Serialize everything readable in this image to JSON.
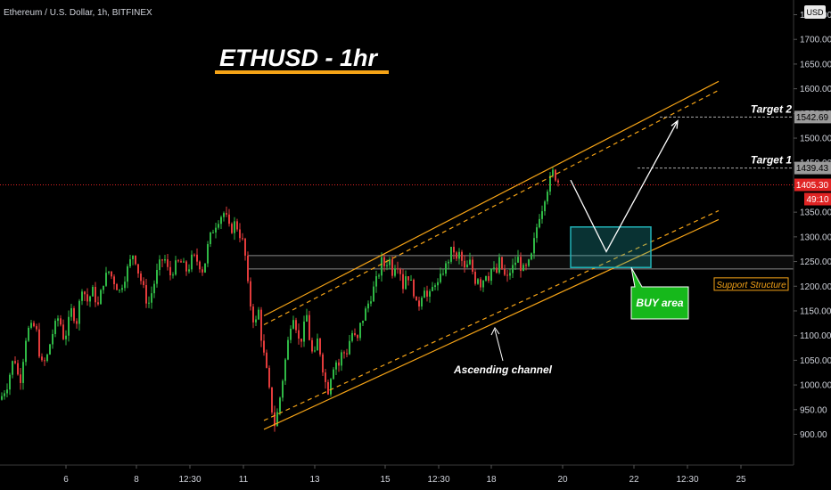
{
  "header": {
    "symbol": "Ethereum / U.S. Dollar, 1h, BITFINEX",
    "currency_button": "USD"
  },
  "title": "ETHUSD - 1hr",
  "colors": {
    "background": "#000000",
    "bull": "#2fb845",
    "bear": "#e23b3b",
    "channel": "#f5a316",
    "title_underline": "#f5a316",
    "buy_box": "#22b3b8",
    "buy_label": "#16b81b",
    "current_price": "#e02424",
    "target_label": "#9a9a9a",
    "arrow": "#ffffff"
  },
  "chart_data": {
    "type": "candlestick",
    "title": "ETHUSD - 1hr",
    "ylim": [
      870,
      1770
    ],
    "x_ticks": [
      "6",
      "8",
      "12:30",
      "11",
      "13",
      "15",
      "12:30",
      "18",
      "20",
      "22",
      "12:30",
      "25"
    ],
    "y_ticks": [
      900,
      950,
      1000,
      1050,
      1100,
      1150,
      1200,
      1250,
      1300,
      1350,
      1400,
      1450,
      1500,
      1550,
      1600,
      1650,
      1700,
      1750
    ],
    "y_tick_labels": [
      "900.00",
      "950.00",
      "1000.00",
      "1050.00",
      "1100.00",
      "1150.00",
      "1200.00",
      "1250.00",
      "1300.00",
      "1350.00",
      "1400.00",
      "1450.00",
      "1500.00",
      "1550.00",
      "1600.00",
      "1650.00",
      "1700.00",
      "1750.00"
    ],
    "price_path": [
      [
        0,
        970
      ],
      [
        8,
        1000
      ],
      [
        16,
        1060
      ],
      [
        22,
        1000
      ],
      [
        30,
        1110
      ],
      [
        40,
        1120
      ],
      [
        46,
        1040
      ],
      [
        52,
        1050
      ],
      [
        58,
        1100
      ],
      [
        66,
        1140
      ],
      [
        72,
        1090
      ],
      [
        80,
        1150
      ],
      [
        86,
        1130
      ],
      [
        92,
        1200
      ],
      [
        98,
        1170
      ],
      [
        104,
        1190
      ],
      [
        110,
        1160
      ],
      [
        116,
        1210
      ],
      [
        122,
        1230
      ],
      [
        128,
        1210
      ],
      [
        134,
        1190
      ],
      [
        140,
        1220
      ],
      [
        146,
        1250
      ],
      [
        150,
        1270
      ],
      [
        155,
        1230
      ],
      [
        160,
        1200
      ],
      [
        166,
        1160
      ],
      [
        172,
        1200
      ],
      [
        178,
        1240
      ],
      [
        184,
        1260
      ],
      [
        190,
        1220
      ],
      [
        196,
        1240
      ],
      [
        202,
        1250
      ],
      [
        210,
        1230
      ],
      [
        216,
        1260
      ],
      [
        222,
        1250
      ],
      [
        228,
        1230
      ],
      [
        234,
        1290
      ],
      [
        240,
        1320
      ],
      [
        246,
        1340
      ],
      [
        252,
        1350
      ],
      [
        258,
        1310
      ],
      [
        264,
        1330
      ],
      [
        270,
        1300
      ],
      [
        274,
        1280
      ],
      [
        278,
        1200
      ],
      [
        282,
        1150
      ],
      [
        286,
        1120
      ],
      [
        290,
        1150
      ],
      [
        294,
        1080
      ],
      [
        298,
        1040
      ],
      [
        304,
        960
      ],
      [
        308,
        920
      ],
      [
        312,
        950
      ],
      [
        316,
        1000
      ],
      [
        320,
        1050
      ],
      [
        324,
        1100
      ],
      [
        328,
        1150
      ],
      [
        332,
        1120
      ],
      [
        336,
        1080
      ],
      [
        340,
        1110
      ],
      [
        344,
        1140
      ],
      [
        348,
        1080
      ],
      [
        352,
        1050
      ],
      [
        356,
        1090
      ],
      [
        360,
        1060
      ],
      [
        364,
        1010
      ],
      [
        368,
        990
      ],
      [
        372,
        1030
      ],
      [
        376,
        1050
      ],
      [
        380,
        1040
      ],
      [
        384,
        1070
      ],
      [
        388,
        1060
      ],
      [
        392,
        1090
      ],
      [
        396,
        1110
      ],
      [
        400,
        1080
      ],
      [
        404,
        1120
      ],
      [
        408,
        1140
      ],
      [
        412,
        1160
      ],
      [
        416,
        1180
      ],
      [
        420,
        1200
      ],
      [
        424,
        1220
      ],
      [
        428,
        1250
      ],
      [
        432,
        1240
      ],
      [
        436,
        1260
      ],
      [
        440,
        1230
      ],
      [
        444,
        1250
      ],
      [
        448,
        1240
      ],
      [
        452,
        1200
      ],
      [
        456,
        1230
      ],
      [
        460,
        1210
      ],
      [
        464,
        1190
      ],
      [
        468,
        1150
      ],
      [
        472,
        1180
      ],
      [
        476,
        1200
      ],
      [
        480,
        1170
      ],
      [
        484,
        1190
      ],
      [
        488,
        1210
      ],
      [
        492,
        1200
      ],
      [
        496,
        1230
      ],
      [
        500,
        1240
      ],
      [
        504,
        1260
      ],
      [
        508,
        1280
      ],
      [
        512,
        1250
      ],
      [
        516,
        1270
      ],
      [
        520,
        1230
      ],
      [
        524,
        1240
      ],
      [
        528,
        1250
      ],
      [
        532,
        1210
      ],
      [
        536,
        1220
      ],
      [
        540,
        1200
      ],
      [
        544,
        1230
      ],
      [
        548,
        1220
      ],
      [
        552,
        1240
      ],
      [
        556,
        1220
      ],
      [
        560,
        1250
      ],
      [
        564,
        1230
      ],
      [
        568,
        1210
      ],
      [
        572,
        1230
      ],
      [
        576,
        1240
      ],
      [
        580,
        1260
      ],
      [
        584,
        1240
      ],
      [
        588,
        1230
      ],
      [
        592,
        1240
      ],
      [
        596,
        1260
      ],
      [
        600,
        1300
      ],
      [
        604,
        1340
      ],
      [
        608,
        1360
      ],
      [
        612,
        1390
      ],
      [
        616,
        1410
      ],
      [
        620,
        1430
      ],
      [
        624,
        1420
      ],
      [
        628,
        1405
      ]
    ],
    "channel": {
      "upper_start": [
        296,
        1140
      ],
      "upper_end": [
        806,
        1615
      ],
      "lower_start": [
        296,
        910
      ],
      "lower_end": [
        806,
        1335
      ]
    },
    "support_zone": [
      1235,
      1262
    ],
    "current_price": 1405.3,
    "current_price_label": "1405.30",
    "countdown_label": "49:10",
    "targets": [
      {
        "label": "Target 1",
        "price": 1439.43,
        "price_label": "1439.43"
      },
      {
        "label": "Target 2",
        "price": 1542.69,
        "price_label": "1542.69"
      }
    ],
    "annotations": {
      "support_structure": "Support Structure",
      "ascending_channel": "Ascending channel",
      "buy_area": "BUY area"
    },
    "buy_zone": {
      "price_top": 1320,
      "price_bottom": 1238
    },
    "projection": [
      [
        640,
        1415
      ],
      [
        680,
        1270
      ],
      [
        760,
        1535
      ]
    ]
  }
}
